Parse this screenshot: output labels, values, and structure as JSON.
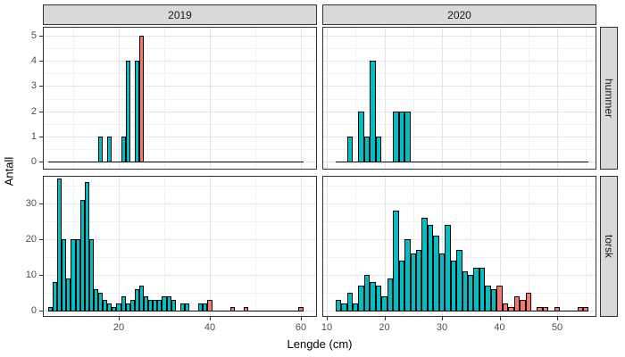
{
  "chart": {
    "x_label": "Lengde (cm)",
    "y_label": "Antall",
    "facet_cols": [
      "2019",
      "2020"
    ],
    "facet_rows": [
      "hummer",
      "torsk"
    ],
    "colors": {
      "teal": "#00BFC4",
      "red": "#F8766D",
      "strip_bg": "#D9D9D9"
    },
    "axes": {
      "x_ticks_2019": [
        20,
        40,
        60
      ],
      "x_ticks_2020": [
        10,
        20,
        30,
        40,
        50
      ],
      "y_ticks_hummer": [
        0,
        1,
        2,
        3,
        4,
        5
      ],
      "y_ticks_torsk": [
        0,
        10,
        20,
        30
      ]
    }
  },
  "chart_data": [
    {
      "type": "bar",
      "facet_col": "2019",
      "facet_row": "hummer",
      "x": [
        16,
        18,
        21,
        22,
        24,
        25
      ],
      "counts": [
        1,
        1,
        1,
        4,
        4,
        5
      ],
      "fill": [
        "teal",
        "teal",
        "teal",
        "teal",
        "teal",
        "red"
      ]
    },
    {
      "type": "bar",
      "facet_col": "2020",
      "facet_row": "hummer",
      "x": [
        14,
        16,
        17,
        18,
        19,
        22,
        23,
        24
      ],
      "counts": [
        1,
        2,
        1,
        4,
        1,
        2,
        2,
        2
      ],
      "fill": [
        "teal",
        "teal",
        "teal",
        "teal",
        "teal",
        "teal",
        "teal",
        "teal"
      ]
    },
    {
      "type": "bar",
      "facet_col": "2019",
      "facet_row": "torsk",
      "x": [
        5,
        6,
        7,
        8,
        9,
        10,
        11,
        12,
        13,
        14,
        15,
        16,
        17,
        18,
        19,
        20,
        21,
        22,
        23,
        24,
        25,
        26,
        27,
        28,
        29,
        30,
        31,
        32,
        34,
        35,
        38,
        39,
        40,
        45,
        48,
        60
      ],
      "counts": [
        1,
        8,
        37,
        20,
        9,
        20,
        20,
        31,
        36,
        20,
        6,
        5,
        3,
        2,
        1,
        2,
        4,
        2,
        3,
        6,
        7,
        4,
        3,
        3,
        3,
        4,
        4,
        3,
        2,
        2,
        2,
        2,
        3,
        1,
        1,
        1
      ],
      "fill": [
        "teal",
        "teal",
        "teal",
        "teal",
        "teal",
        "teal",
        "teal",
        "teal",
        "teal",
        "teal",
        "teal",
        "teal",
        "teal",
        "teal",
        "teal",
        "teal",
        "teal",
        "teal",
        "teal",
        "teal",
        "teal",
        "teal",
        "teal",
        "teal",
        "teal",
        "teal",
        "teal",
        "teal",
        "teal",
        "teal",
        "teal",
        "teal",
        "red",
        "red",
        "red",
        "red"
      ]
    },
    {
      "type": "bar",
      "facet_col": "2020",
      "facet_row": "torsk",
      "x": [
        12,
        13,
        14,
        15,
        16,
        17,
        18,
        19,
        20,
        21,
        22,
        23,
        24,
        25,
        26,
        27,
        28,
        29,
        30,
        31,
        32,
        33,
        34,
        35,
        36,
        37,
        38,
        39,
        40,
        41,
        42,
        43,
        44,
        45,
        47,
        48,
        50,
        54,
        55
      ],
      "counts": [
        3,
        2,
        5,
        2,
        7,
        10,
        8,
        7,
        4,
        9,
        28,
        14,
        20,
        16,
        17,
        26,
        24,
        21,
        16,
        24,
        14,
        17,
        11,
        10,
        12,
        12,
        7,
        6,
        7,
        2,
        1,
        4,
        3,
        5,
        1,
        1,
        1,
        1,
        1
      ],
      "fill": [
        "teal",
        "teal",
        "teal",
        "teal",
        "teal",
        "teal",
        "teal",
        "teal",
        "teal",
        "teal",
        "teal",
        "teal",
        "teal",
        "teal",
        "teal",
        "teal",
        "teal",
        "teal",
        "teal",
        "teal",
        "teal",
        "teal",
        "teal",
        "teal",
        "teal",
        "teal",
        "teal",
        "teal",
        "red",
        "red",
        "red",
        "red",
        "red",
        "red",
        "red",
        "red",
        "red",
        "red",
        "red"
      ]
    }
  ]
}
